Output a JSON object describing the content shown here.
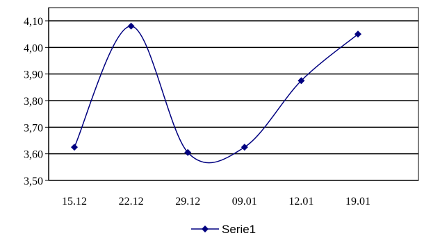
{
  "chart_data": {
    "type": "line",
    "title": "",
    "xlabel": "",
    "ylabel": "",
    "categories": [
      "15.12",
      "22.12",
      "29.12",
      "09.01",
      "12.01",
      "19.01"
    ],
    "series": [
      {
        "name": "Serie1",
        "values": [
          3.625,
          4.08,
          3.605,
          3.625,
          3.875,
          4.05
        ],
        "color": "#000080"
      }
    ],
    "ylim": [
      3.5,
      4.1
    ],
    "yticks": [
      "3,50",
      "3,60",
      "3,70",
      "3,80",
      "3,90",
      "4,00",
      "4,10"
    ],
    "smoothed": true,
    "marker": "diamond",
    "grid": "horizontal",
    "legend_position": "bottom"
  }
}
